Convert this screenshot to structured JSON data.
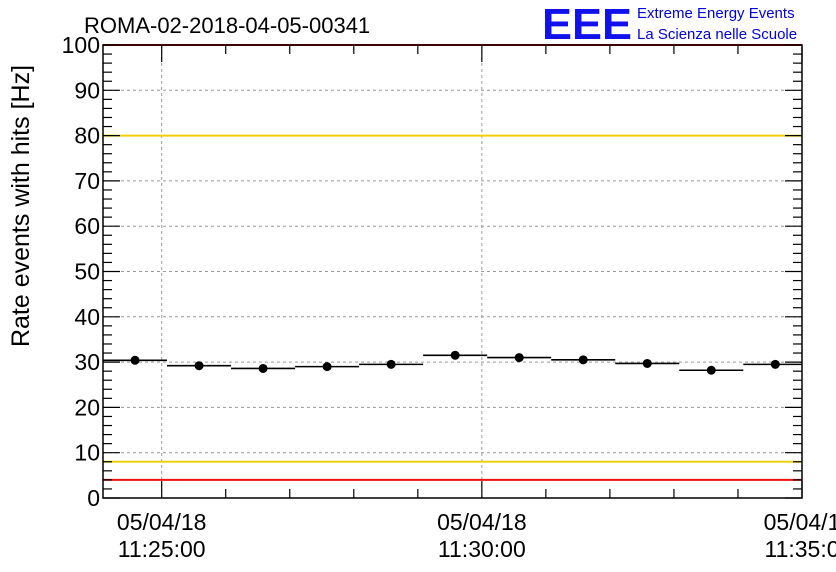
{
  "title": "ROMA-02-2018-04-05-00341",
  "logo": {
    "mark": "EEE",
    "line1": "Extreme Energy Events",
    "line2": "La Scienza nelle Scuole",
    "color": "#1111ee"
  },
  "chart_data": {
    "type": "scatter",
    "title": "ROMA-02-2018-04-05-00341",
    "xlabel": "",
    "ylabel": "Rate events with hits [Hz]",
    "ylim": [
      0,
      100
    ],
    "xlim": [
      "2018-04-05 11:24:05",
      "2018-04-05 11:35:00"
    ],
    "grid": true,
    "x_ticks": [
      {
        "date": "05/04/18",
        "time": "11:25:00",
        "value": "2018-04-05 11:25:00"
      },
      {
        "date": "05/04/18",
        "time": "11:30:00",
        "value": "2018-04-05 11:30:00"
      },
      {
        "date": "05/04/1",
        "time": "11:35:0",
        "value": "2018-04-05 11:35:00"
      }
    ],
    "y_ticks": [
      0,
      10,
      20,
      30,
      40,
      50,
      60,
      70,
      80,
      90,
      100
    ],
    "series": [
      {
        "marker": "circle",
        "color": "#000000",
        "x_start": [
          "11:24:05",
          "11:25:05",
          "11:26:05",
          "11:27:05",
          "11:28:05",
          "11:29:05",
          "11:30:05",
          "11:31:05",
          "11:32:05",
          "11:33:05",
          "11:34:05"
        ],
        "x_end": [
          "11:25:05",
          "11:26:05",
          "11:27:05",
          "11:28:05",
          "11:29:05",
          "11:30:05",
          "11:31:05",
          "11:32:05",
          "11:33:05",
          "11:34:05",
          "11:35:00"
        ],
        "x": [
          "11:24:35",
          "11:25:35",
          "11:26:35",
          "11:27:35",
          "11:28:35",
          "11:29:35",
          "11:30:35",
          "11:31:35",
          "11:32:35",
          "11:33:35",
          "11:34:35"
        ],
        "y": [
          30.4,
          29.2,
          28.6,
          29.0,
          29.5,
          31.5,
          31.0,
          30.5,
          29.7,
          28.2,
          29.5
        ]
      }
    ],
    "reference_lines": [
      {
        "y": 80,
        "color": "#f2d000"
      },
      {
        "y": 8,
        "color": "#f2d000"
      },
      {
        "y": 100,
        "color": "#ee1111"
      },
      {
        "y": 4,
        "color": "#ee1111"
      }
    ]
  }
}
